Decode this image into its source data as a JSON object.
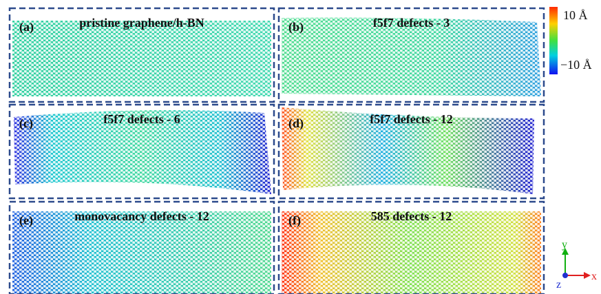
{
  "panels": [
    {
      "label": "(a)",
      "title": "pristine graphene/h-BN"
    },
    {
      "label": "(b)",
      "title": "f5f7 defects - 3"
    },
    {
      "label": "(c)",
      "title": "f5f7 defects - 6"
    },
    {
      "label": "(d)",
      "title": "f5f7 defects - 12"
    },
    {
      "label": "(e)",
      "title": "monovacancy defects - 12"
    },
    {
      "label": "(f)",
      "title": "585 defects - 12"
    }
  ],
  "colorbar": {
    "max_label": "10 Å",
    "min_label": "−10 Å"
  },
  "axes": {
    "y": "y",
    "x": "x",
    "z": "z"
  }
}
